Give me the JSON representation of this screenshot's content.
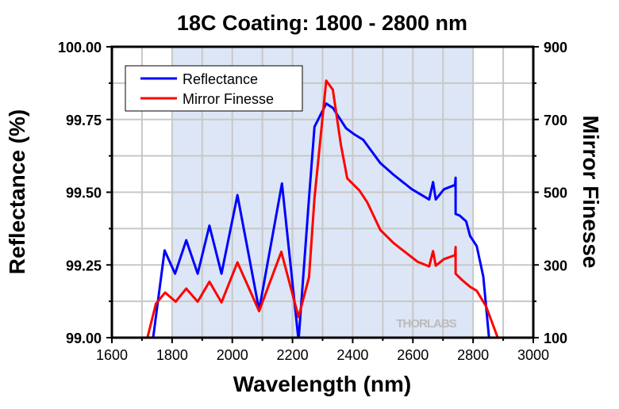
{
  "chart_data": {
    "type": "line",
    "title": "18C Coating: 1800 - 2800 nm",
    "xlabel": "Wavelength (nm)",
    "ylabel": "Reflectance (%)",
    "y2label": "Mirror Finesse",
    "xlim": [
      1600,
      3000
    ],
    "ylim": [
      99.0,
      100.0
    ],
    "y2lim": [
      100,
      900
    ],
    "xticks": [
      "1600",
      "1800",
      "2000",
      "2200",
      "2400",
      "2600",
      "2800",
      "3000"
    ],
    "yticks": [
      "99.00",
      "99.25",
      "99.50",
      "99.75",
      "100.00"
    ],
    "y2ticks": [
      "100",
      "300",
      "500",
      "700",
      "900"
    ],
    "grid": true,
    "shaded_region": [
      1800,
      2800
    ],
    "shade_color": "#dce6f6",
    "legend_position": "top-left",
    "watermark": "THORLABS",
    "series": [
      {
        "name": "Reflectance",
        "axis": "left",
        "color": "#0000ff",
        "x": [
          1737,
          1775,
          1810,
          1847,
          1885,
          1924,
          1964,
          2017,
          2089,
          2165,
          2220,
          2255,
          2273,
          2312,
          2334,
          2378,
          2404,
          2435,
          2492,
          2536,
          2597,
          2654,
          2667,
          2676,
          2703,
          2740,
          2742,
          2742,
          2755,
          2777,
          2790,
          2812,
          2834,
          2853
        ],
        "y": [
          99.0,
          99.3,
          99.22,
          99.335,
          99.22,
          99.385,
          99.22,
          99.49,
          99.095,
          99.53,
          98.99,
          99.48,
          99.725,
          99.805,
          99.79,
          99.72,
          99.7,
          99.68,
          99.6,
          99.56,
          99.51,
          99.475,
          99.535,
          99.475,
          99.51,
          99.525,
          99.55,
          99.425,
          99.42,
          99.4,
          99.35,
          99.315,
          99.21,
          99.0
        ]
      },
      {
        "name": "Mirror Finesse",
        "axis": "right",
        "color": "#ff0000",
        "x": [
          1718,
          1746,
          1777,
          1812,
          1847,
          1885,
          1924,
          1964,
          2017,
          2089,
          2163,
          2220,
          2255,
          2273,
          2312,
          2334,
          2361,
          2382,
          2422,
          2448,
          2492,
          2536,
          2615,
          2654,
          2667,
          2676,
          2703,
          2740,
          2742,
          2742,
          2764,
          2790,
          2812,
          2843,
          2882
        ],
        "y": [
          100,
          193,
          224,
          199,
          235,
          199,
          254,
          197,
          307,
          173,
          336,
          157,
          266,
          484,
          807,
          782,
          630,
          538,
          505,
          473,
          396,
          360,
          309,
          296,
          338,
          298,
          316,
          327,
          349,
          276,
          258,
          240,
          229,
          186,
          100
        ]
      }
    ]
  }
}
